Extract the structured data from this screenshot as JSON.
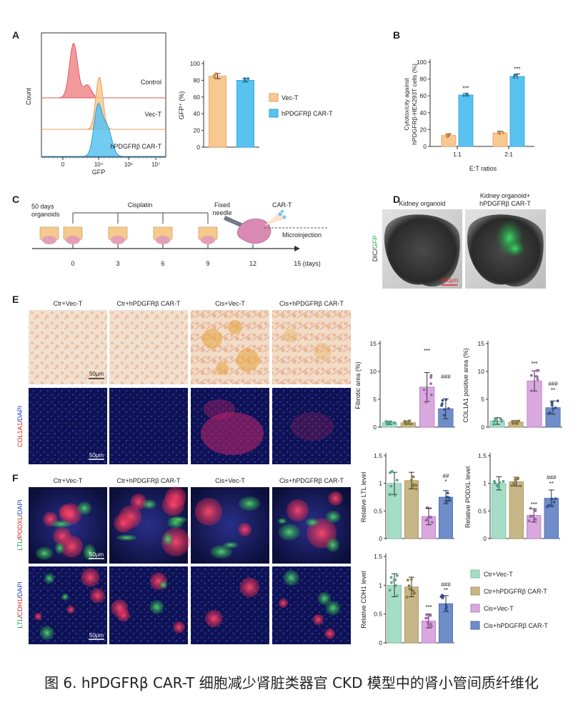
{
  "panel_labels": {
    "A": "A",
    "B": "B",
    "C": "C",
    "D": "D",
    "E": "E",
    "F": "F"
  },
  "colors": {
    "vec_orange": "#f8c890",
    "car_blue": "#59c3f0",
    "control_red": "#f0878a",
    "ctr_vec": "#a6ddc7",
    "ctr_car": "#c7b687",
    "cis_vec": "#d8a8de",
    "cis_car": "#6f8ec9"
  },
  "panelA": {
    "flow": {
      "y_label": "Count",
      "x_label": "GFP",
      "x_ticks": [
        "0",
        "10⁴",
        "10⁶",
        "10⁷"
      ],
      "tracks": [
        {
          "label": "Control"
        },
        {
          "label": "Vec-T"
        },
        {
          "label": "hPDGFRβ CAR-T"
        }
      ]
    },
    "bar": {
      "y_label": "GFP⁺ (%)",
      "y_ticks": [
        "0",
        "20",
        "40",
        "60",
        "80",
        "100"
      ],
      "legend": [
        "Vec-T",
        "hPDGFRβ CAR-T"
      ]
    }
  },
  "panelB": {
    "y_label_line1": "Cytotoxicity against",
    "y_label_line2": "hPDGFRβ-HEK293T cells (%)",
    "x_label": "E:T ratios",
    "y_ticks": [
      "0",
      "20",
      "40",
      "60",
      "80",
      "100"
    ],
    "groups": [
      "1:1",
      "2:1"
    ],
    "sig": [
      "***",
      "***"
    ]
  },
  "panelC": {
    "label_organoids": "50 days organoids",
    "label_cisplatin": "Cisplatin",
    "label_needle": "Fixed needle",
    "label_cart": "CAR-T",
    "label_microinjection": "Microinjection",
    "timepoints": [
      "0",
      "3",
      "6",
      "9",
      "12",
      "15 (days)"
    ]
  },
  "panelD": {
    "titles": [
      "Kidney organoid",
      "Kidney organoid+ hPDGFRβ CAR-T"
    ],
    "side_label": "DIC/GFP",
    "scalebar": "200μm"
  },
  "panelE": {
    "titles": [
      "Ctr+Vec-T",
      "Ctr+hPDGFRβ CAR-T",
      "Cis+Vec-T",
      "Cis+hPDGFRβ CAR-T"
    ],
    "side_label_col1a1": "COL1A1/DAPI",
    "scalebar": "50μm",
    "chart1_ylabel": "Fibrotic area (%)",
    "chart2_ylabel": "COL1A1 positive area (%)",
    "chart1_sig": [
      "***",
      "###"
    ],
    "chart2_sig": [
      "***",
      "###",
      "**"
    ]
  },
  "panelF": {
    "titles": [
      "Ctr+Vec-T",
      "Ctr+hPDGFRβ CAR-T",
      "Cis+Vec-T",
      "Cis+hPDGFRβ CAR-T"
    ],
    "side_label_row1": "LTL/PODXL/DAPI",
    "side_label_row2": "LTL/CDH1/DAPI",
    "scalebar": "50μm",
    "ltl_ylabel": "Relative LTL level",
    "podxl_ylabel": "Relative PODXL level",
    "cdh1_ylabel": "Relative CDH1 level",
    "legend": [
      "Ctr+Vec-T",
      "Ctr+hPDGFRβ CAR-T",
      "Cis+Vec-T",
      "Cis+hPDGFRβ CAR-T"
    ]
  },
  "caption": "图 6. hPDGFRβ CAR-T 细胞减少肾脏类器官 CKD 模型中的肾小管间质纤维化",
  "chart_data": [
    {
      "id": "A-bar",
      "type": "bar",
      "categories": [
        "Vec-T",
        "hPDGFRβ CAR-T"
      ],
      "values": [
        85,
        80
      ],
      "errors": [
        3,
        2
      ],
      "ylim": [
        0,
        100
      ],
      "ylabel": "GFP⁺ (%)"
    },
    {
      "id": "B",
      "type": "bar",
      "categories": [
        "1:1",
        "2:1"
      ],
      "series": [
        {
          "name": "Vec-T",
          "values": [
            13,
            16
          ]
        },
        {
          "name": "hPDGFRβ CAR-T",
          "values": [
            61,
            83
          ]
        }
      ],
      "errors": [
        [
          2,
          2
        ],
        [
          2,
          3
        ]
      ],
      "ylim": [
        0,
        100
      ],
      "xlabel": "E:T ratios"
    },
    {
      "id": "E-fibrotic",
      "type": "bar",
      "categories": [
        "Ctr+Vec-T",
        "Ctr+hPDGFRβ CAR-T",
        "Cis+Vec-T",
        "Cis+hPDGFRβ CAR-T"
      ],
      "values": [
        0.8,
        0.8,
        7.2,
        3.3
      ],
      "errors": [
        0.3,
        0.3,
        2.6,
        1.8
      ],
      "yticks": [
        0,
        5,
        10,
        15
      ],
      "ylim": [
        0,
        15
      ],
      "ylabel": "Fibrotic area (%)"
    },
    {
      "id": "E-col1a1",
      "type": "bar",
      "categories": [
        "Ctr+Vec-T",
        "Ctr+hPDGFRβ CAR-T",
        "Cis+Vec-T",
        "Cis+hPDGFRβ CAR-T"
      ],
      "values": [
        1.1,
        0.9,
        8.3,
        3.5
      ],
      "errors": [
        0.6,
        0.3,
        1.8,
        1.2
      ],
      "yticks": [
        0,
        5,
        10,
        15
      ],
      "ylim": [
        0,
        15
      ],
      "ylabel": "COL1A1 positive area (%)"
    },
    {
      "id": "F-ltl",
      "type": "bar",
      "categories": [
        "Ctr+Vec-T",
        "Ctr+hPDGFRβ CAR-T",
        "Cis+Vec-T",
        "Cis+hPDGFRβ CAR-T"
      ],
      "values": [
        1.0,
        1.05,
        0.4,
        0.75
      ],
      "errors": [
        0.2,
        0.15,
        0.15,
        0.12
      ],
      "yticks": [
        0,
        0.5,
        1,
        1.5
      ],
      "ylim": [
        0,
        1.5
      ],
      "ylabel": "Relative LTL level"
    },
    {
      "id": "F-podxl",
      "type": "bar",
      "categories": [
        "Ctr+Vec-T",
        "Ctr+hPDGFRβ CAR-T",
        "Cis+Vec-T",
        "Cis+hPDGFRβ CAR-T"
      ],
      "values": [
        1.0,
        1.03,
        0.42,
        0.73
      ],
      "errors": [
        0.12,
        0.08,
        0.12,
        0.15
      ],
      "yticks": [
        0,
        0.5,
        1,
        1.5
      ],
      "ylim": [
        0,
        1.5
      ],
      "ylabel": "Relative PODXL level"
    },
    {
      "id": "F-cdh1",
      "type": "bar",
      "categories": [
        "Ctr+Vec-T",
        "Ctr+hPDGFRβ CAR-T",
        "Cis+Vec-T",
        "Cis+hPDGFRβ CAR-T"
      ],
      "values": [
        1.0,
        0.97,
        0.38,
        0.68
      ],
      "errors": [
        0.2,
        0.17,
        0.12,
        0.14
      ],
      "yticks": [
        0,
        0.5,
        1,
        1.5
      ],
      "ylim": [
        0,
        1.5
      ],
      "ylabel": "Relative CDH1 level"
    }
  ]
}
